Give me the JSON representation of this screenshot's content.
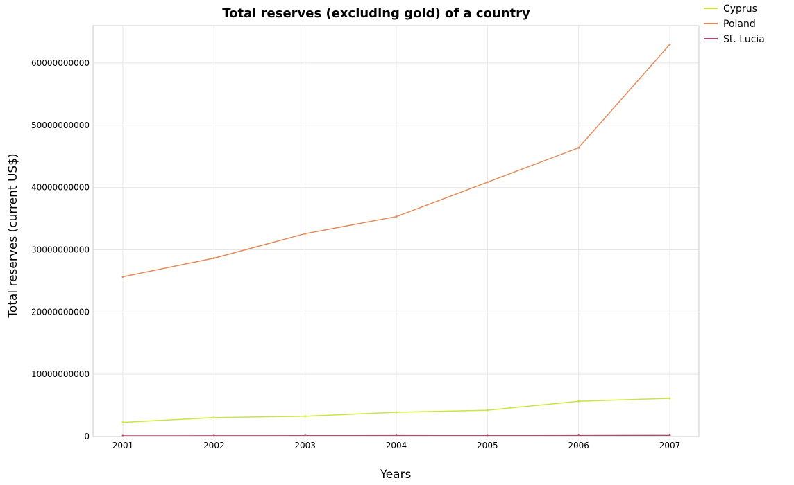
{
  "chart_data": {
    "type": "line",
    "title": "Total reserves (excluding gold) of a country",
    "xlabel": "Years",
    "ylabel": "Total reserves (current US$)",
    "categories": [
      "2001",
      "2002",
      "2003",
      "2004",
      "2005",
      "2006",
      "2007"
    ],
    "ylim": [
      0,
      66000000000
    ],
    "yticks": [
      0,
      10000000000,
      20000000000,
      30000000000,
      40000000000,
      50000000000,
      60000000000
    ],
    "ytick_labels": [
      "0",
      "10000000000",
      "20000000000",
      "30000000000",
      "40000000000",
      "50000000000",
      "60000000000"
    ],
    "grid": true,
    "legend_position": "top-right",
    "series": [
      {
        "name": "Cyprus",
        "color": "#c6e83a",
        "values": [
          2270000000,
          3030000000,
          3260000000,
          3890000000,
          4220000000,
          5650000000,
          6120000000
        ]
      },
      {
        "name": "Poland",
        "color": "#e28b5a",
        "values": [
          25650000000,
          28650000000,
          32580000000,
          35320000000,
          40860000000,
          46380000000,
          62970000000
        ]
      },
      {
        "name": "St. Lucia",
        "color": "#b04a6a",
        "values": [
          113000000,
          120000000,
          137000000,
          159000000,
          129000000,
          159000000,
          178000000
        ]
      }
    ]
  }
}
